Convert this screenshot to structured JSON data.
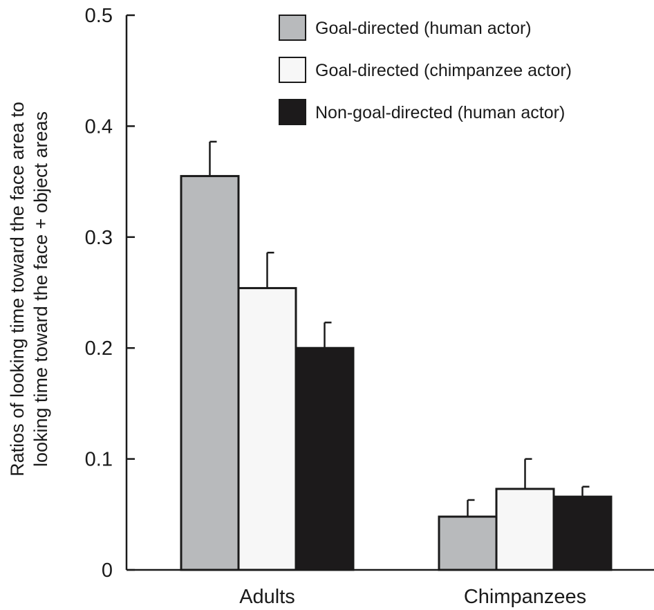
{
  "chart_data": {
    "type": "bar",
    "title": "",
    "xlabel": "",
    "ylabel_lines": [
      "Ratios of looking time toward the face area to",
      "looking time toward the face + object areas"
    ],
    "ylim": [
      0,
      0.5
    ],
    "yticks": [
      "0",
      "0.1",
      "0.2",
      "0.3",
      "0.4",
      "0.5"
    ],
    "categories": [
      "Adults",
      "Chimpanzees"
    ],
    "grid": false,
    "legend_position": "top-right",
    "series": [
      {
        "name": "Goal-directed (human actor)",
        "color": "#b8babc",
        "values": [
          0.355,
          0.048
        ],
        "errors": [
          0.031,
          0.015
        ]
      },
      {
        "name": "Goal-directed (chimpanzee actor)",
        "color": "#f7f7f7",
        "values": [
          0.254,
          0.073
        ],
        "errors": [
          0.032,
          0.027
        ]
      },
      {
        "name": "Non-goal-directed (human actor)",
        "color": "#1c1a1b",
        "values": [
          0.2,
          0.066
        ],
        "errors": [
          0.023,
          0.009
        ]
      }
    ]
  }
}
